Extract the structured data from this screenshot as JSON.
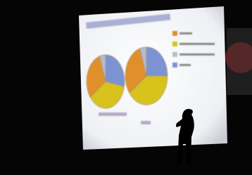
{
  "chart_data": [
    {
      "type": "pie",
      "series": [
        {
          "color": "#7b93d3",
          "values": [
            28
          ]
        },
        {
          "color": "#d8c21e",
          "values": [
            37
          ]
        },
        {
          "color": "#e08f2c",
          "values": [
            30
          ]
        },
        {
          "color": "#b7bccb",
          "values": [
            5
          ]
        }
      ]
    },
    {
      "type": "pie",
      "series": [
        {
          "color": "#7b93d3",
          "values": [
            25
          ]
        },
        {
          "color": "#d8c21e",
          "values": [
            40
          ]
        },
        {
          "color": "#e08f2c",
          "values": [
            30
          ]
        },
        {
          "color": "#b7bccb",
          "values": [
            5
          ]
        }
      ]
    }
  ]
}
